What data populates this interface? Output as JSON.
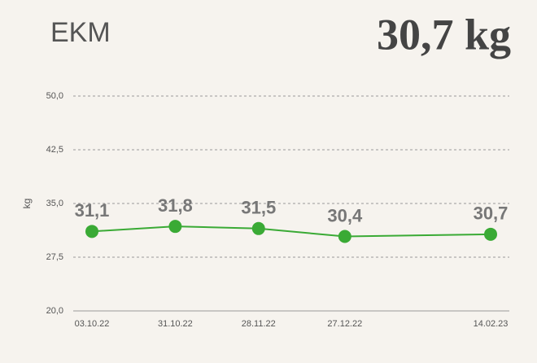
{
  "chart_data": {
    "type": "line",
    "title": "EKM",
    "headline": "30,7 kg",
    "ylabel": "kg",
    "x": [
      "03.10.22",
      "31.10.22",
      "28.11.22",
      "27.12.22",
      "14.02.23"
    ],
    "series": [
      {
        "name": "EKM",
        "color": "#3aaa35",
        "values": [
          31.1,
          31.8,
          31.5,
          30.4,
          30.7
        ],
        "value_labels": [
          "31,1",
          "31,8",
          "31,5",
          "30,4",
          "30,7"
        ]
      }
    ],
    "ylim": [
      20,
      50
    ],
    "yticks": [
      {
        "value": 20,
        "label": "20,0"
      },
      {
        "value": 27.5,
        "label": "27,5"
      },
      {
        "value": 35,
        "label": "35,0"
      },
      {
        "value": 42.5,
        "label": "42,5"
      },
      {
        "value": 50,
        "label": "50,0"
      }
    ],
    "grid": true
  }
}
